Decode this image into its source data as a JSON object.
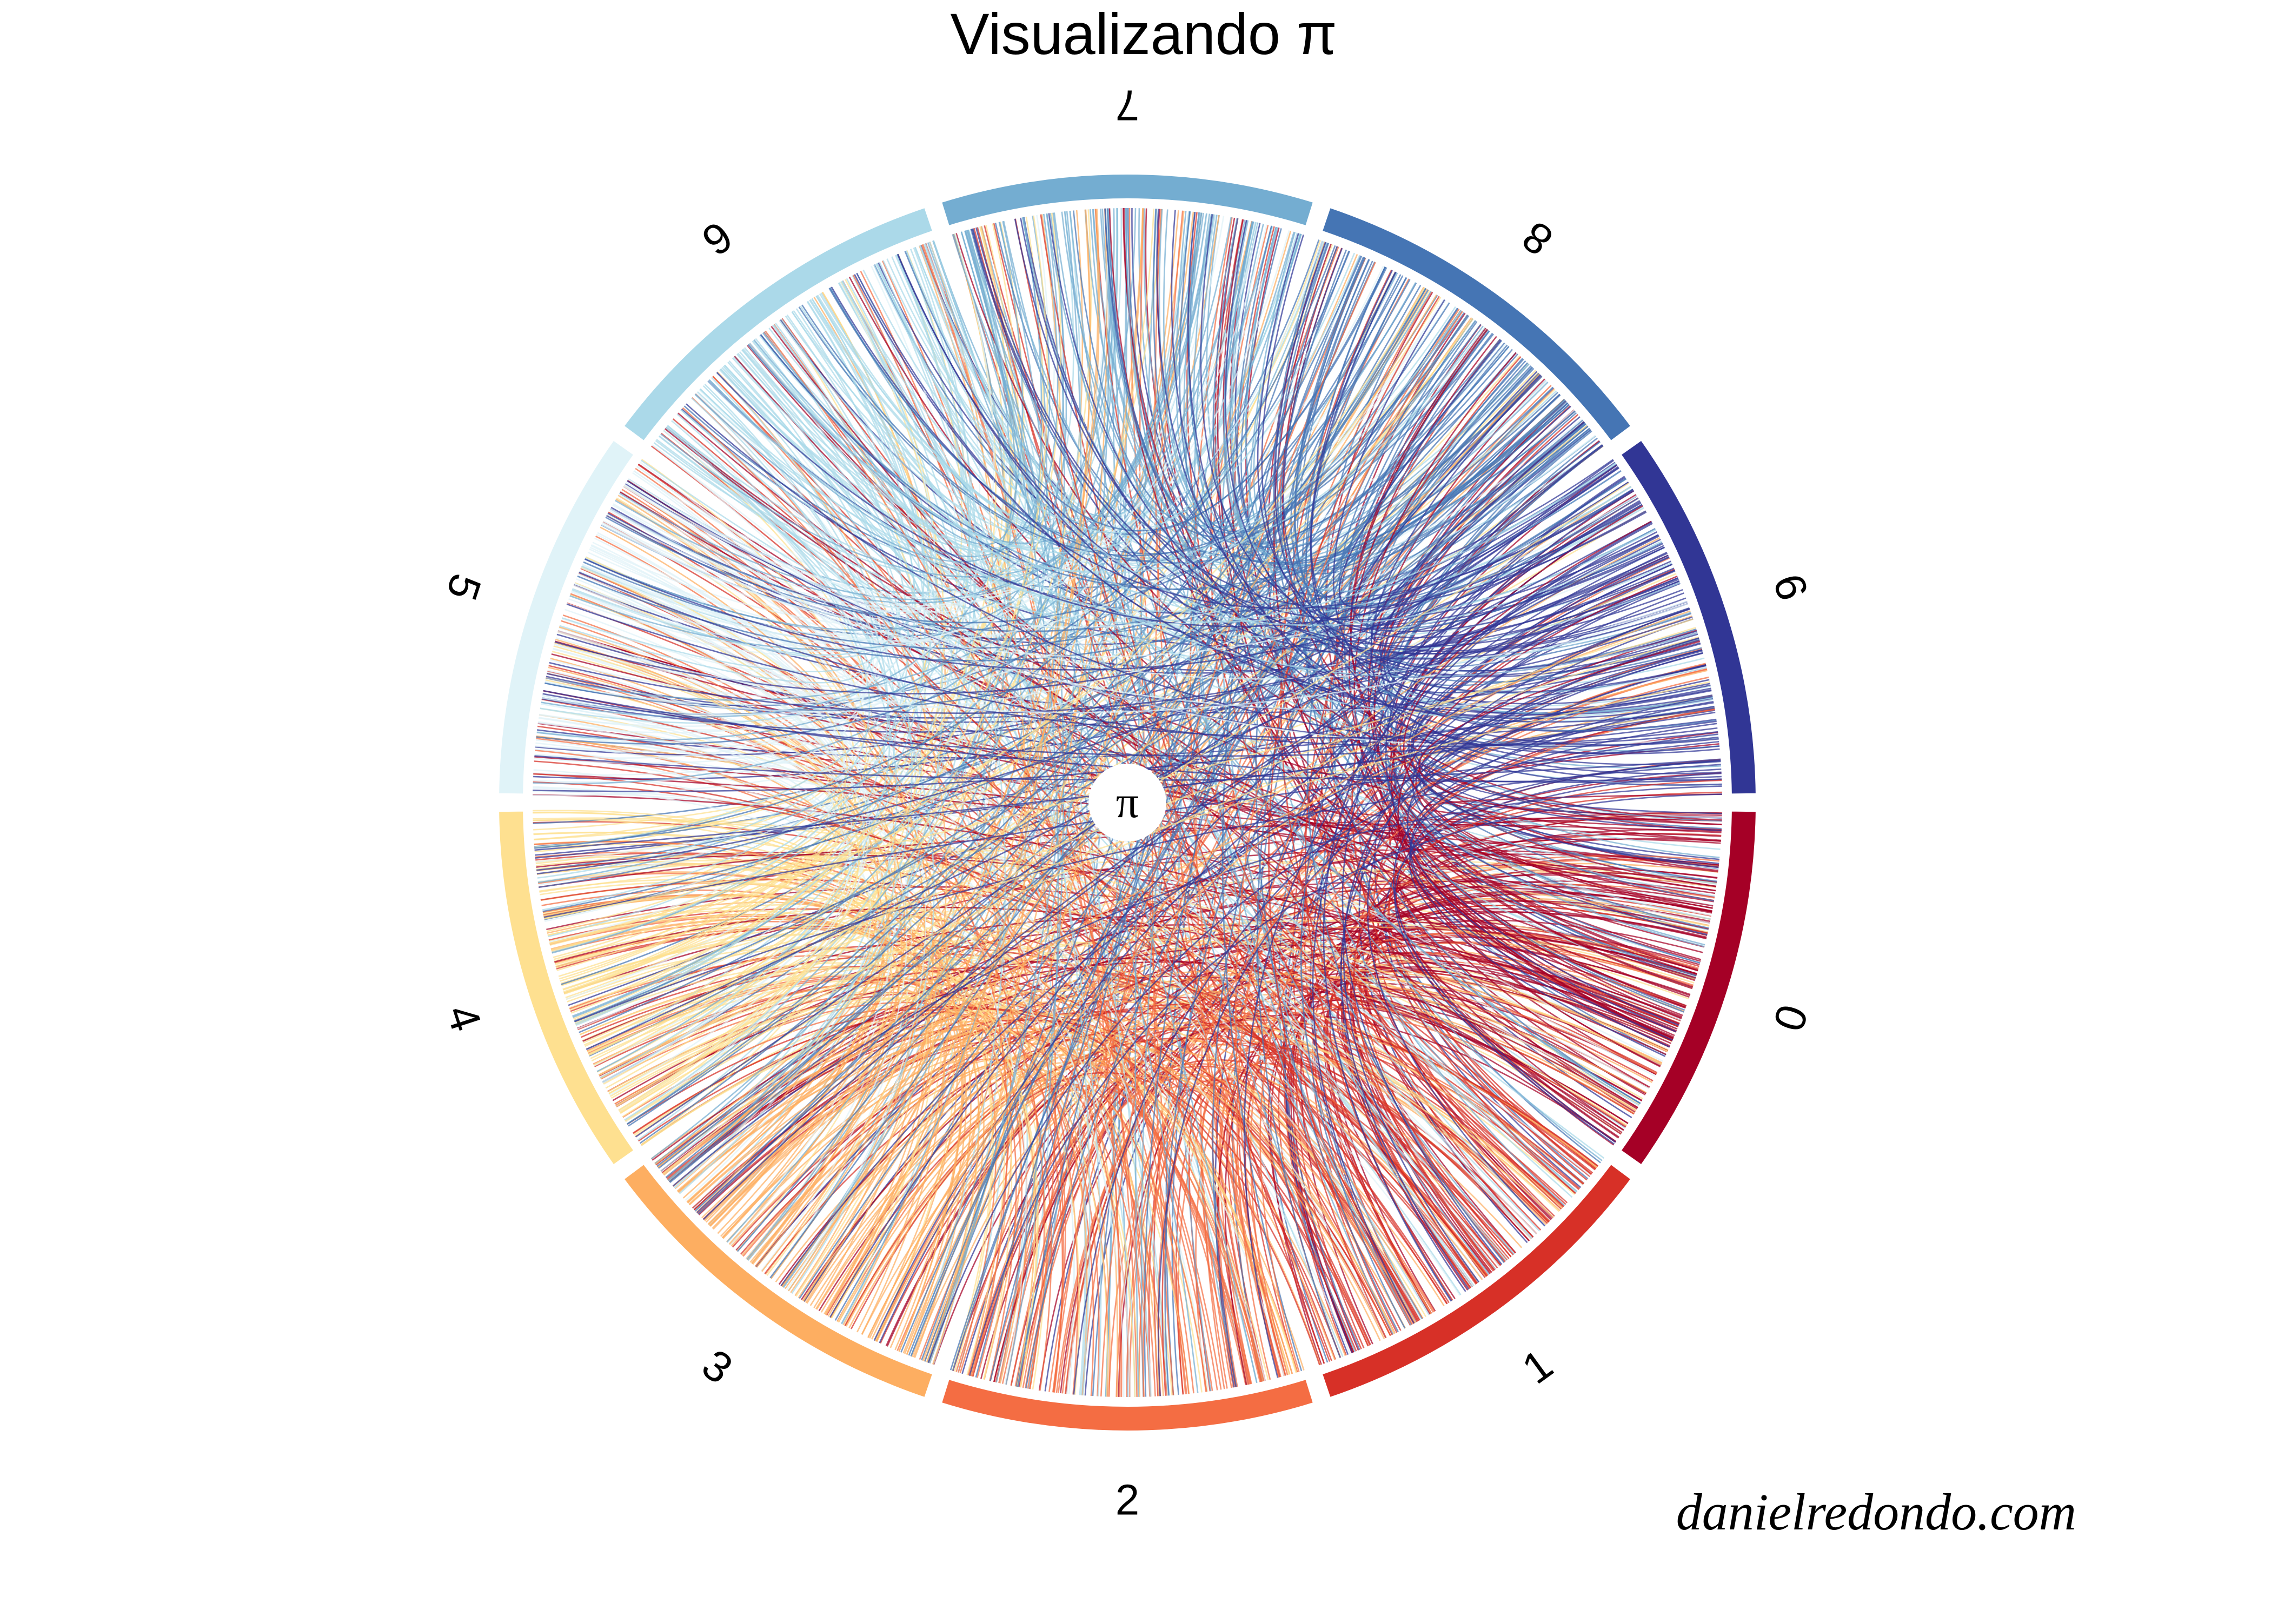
{
  "chart_data": {
    "type": "chord",
    "title": "Visualizando π",
    "center_label": "π",
    "credit": "danielredondo.com",
    "digits_order_clockwise_from_right": [
      "0",
      "1",
      "2",
      "3",
      "4",
      "5",
      "6",
      "7",
      "8",
      "9"
    ],
    "sectors": [
      {
        "label": "0",
        "color": "#a50026"
      },
      {
        "label": "1",
        "color": "#d73027"
      },
      {
        "label": "2",
        "color": "#f46d43"
      },
      {
        "label": "3",
        "color": "#fdae61"
      },
      {
        "label": "4",
        "color": "#fee090"
      },
      {
        "label": "5",
        "color": "#e0f3f8"
      },
      {
        "label": "6",
        "color": "#abd9e9"
      },
      {
        "label": "7",
        "color": "#74add1"
      },
      {
        "label": "8",
        "color": "#4575b4"
      },
      {
        "label": "9",
        "color": "#313695"
      }
    ],
    "legend": "none",
    "grid": false
  }
}
